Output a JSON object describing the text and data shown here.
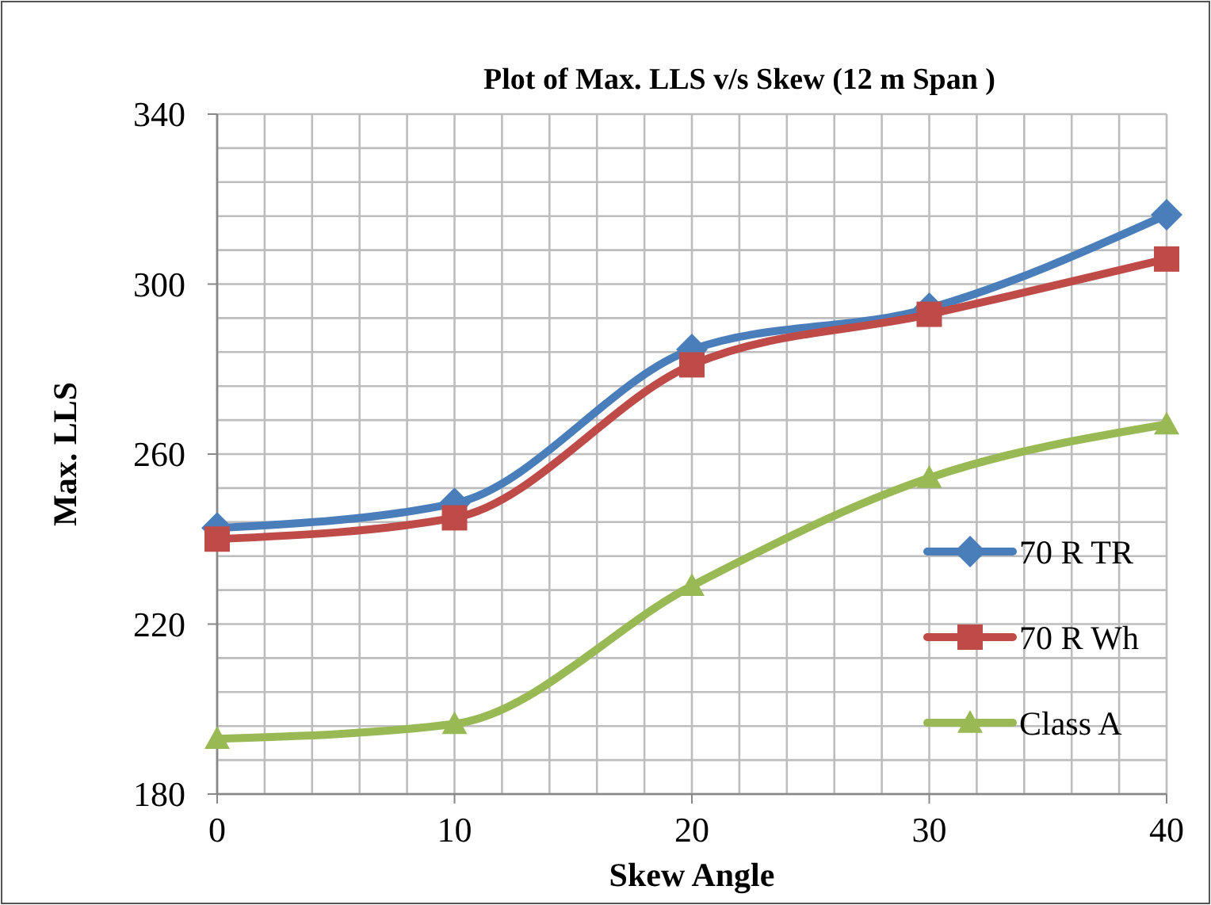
{
  "chart_data": {
    "type": "line",
    "title": "Plot of Max. LLS v/s Skew (12 m Span )",
    "xlabel": "Skew Angle",
    "ylabel": "Max. LLS",
    "x": [
      0,
      10,
      20,
      30,
      40
    ],
    "series": [
      {
        "name": "70 R TR",
        "color": "#4a7ebb",
        "marker": "diamond",
        "values": [
          242.6,
          248.4,
          284.6,
          294.3,
          316.3
        ]
      },
      {
        "name": "70 R Wh",
        "color": "#be4b48",
        "marker": "square",
        "values": [
          240,
          245,
          281,
          292.9,
          305.9
        ]
      },
      {
        "name": "Class A",
        "color": "#98b954",
        "marker": "triangle",
        "values": [
          193,
          196.5,
          229,
          254.4,
          267
        ]
      }
    ],
    "xlim": [
      0,
      40
    ],
    "xticks": [
      0,
      {
        "value": 2,
        "label": null
      },
      {
        "value": 4,
        "label": null
      },
      {
        "value": 6,
        "label": null
      },
      {
        "value": 8,
        "label": null
      },
      10,
      {
        "value": 12,
        "label": null
      },
      {
        "value": 14,
        "label": null
      },
      {
        "value": 16,
        "label": null
      },
      {
        "value": 18,
        "label": null
      },
      20,
      {
        "value": 22,
        "label": null
      },
      {
        "value": 24,
        "label": null
      },
      {
        "value": 26,
        "label": null
      },
      {
        "value": 28,
        "label": null
      },
      30,
      {
        "value": 32,
        "label": null
      },
      {
        "value": 34,
        "label": null
      },
      {
        "value": 36,
        "label": null
      },
      {
        "value": 38,
        "label": null
      },
      40
    ],
    "ylim": [
      180,
      340
    ],
    "yticks": [
      180,
      {
        "value": 188,
        "label": null
      },
      {
        "value": 196,
        "label": null
      },
      {
        "value": 204,
        "label": null
      },
      {
        "value": 212,
        "label": null
      },
      220,
      {
        "value": 228,
        "label": null
      },
      {
        "value": 236,
        "label": null
      },
      {
        "value": 244,
        "label": null
      },
      {
        "value": 252,
        "label": null
      },
      260,
      {
        "value": 268,
        "label": null
      },
      {
        "value": 276,
        "label": null
      },
      {
        "value": 284,
        "label": null
      },
      {
        "value": 292,
        "label": null
      },
      300,
      {
        "value": 308,
        "label": null
      },
      {
        "value": 316,
        "label": null
      },
      {
        "value": 324,
        "label": null
      },
      {
        "value": 332,
        "label": null
      },
      340
    ],
    "grid": true,
    "legend": "right",
    "line_style": "solid"
  }
}
